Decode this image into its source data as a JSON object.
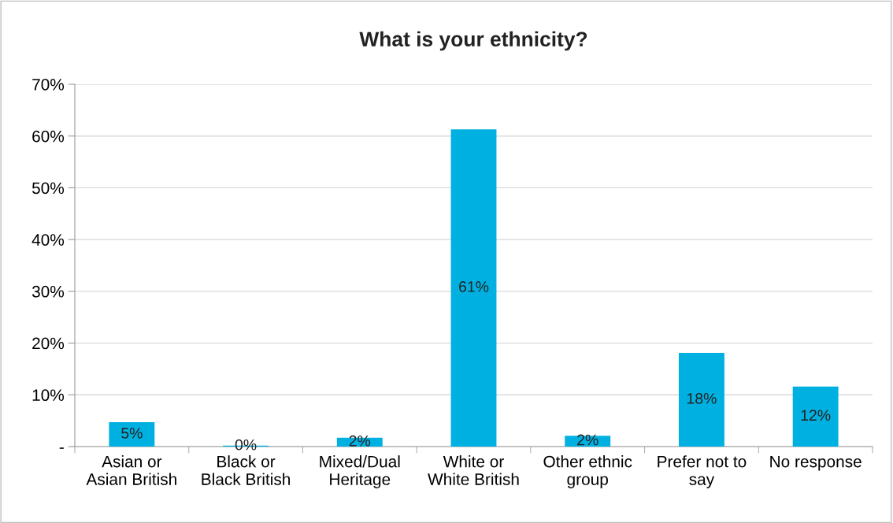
{
  "chart_data": {
    "type": "bar",
    "title": "What is your ethnicity?",
    "categories": [
      "Asian or Asian British",
      "Black or Black British",
      "Mixed/Dual Heritage",
      "White or White British",
      "Other ethnic group",
      "Prefer not to say",
      "No response"
    ],
    "values": [
      4.7,
      0.2,
      1.7,
      61.3,
      2.1,
      18.1,
      11.6
    ],
    "value_labels": [
      "5%",
      "0%",
      "2%",
      "61%",
      "2%",
      "18%",
      "12%"
    ],
    "color": "#00b0e0",
    "ylim": [
      0,
      70
    ],
    "yticks": [
      {
        "value": 0,
        "label": "-"
      },
      {
        "value": 10,
        "label": "10%"
      },
      {
        "value": 20,
        "label": "20%"
      },
      {
        "value": 30,
        "label": "30%"
      },
      {
        "value": 40,
        "label": "40%"
      },
      {
        "value": 50,
        "label": "50%"
      },
      {
        "value": 60,
        "label": "60%"
      },
      {
        "value": 70,
        "label": "70%"
      }
    ],
    "grid": "y",
    "legend": false
  }
}
